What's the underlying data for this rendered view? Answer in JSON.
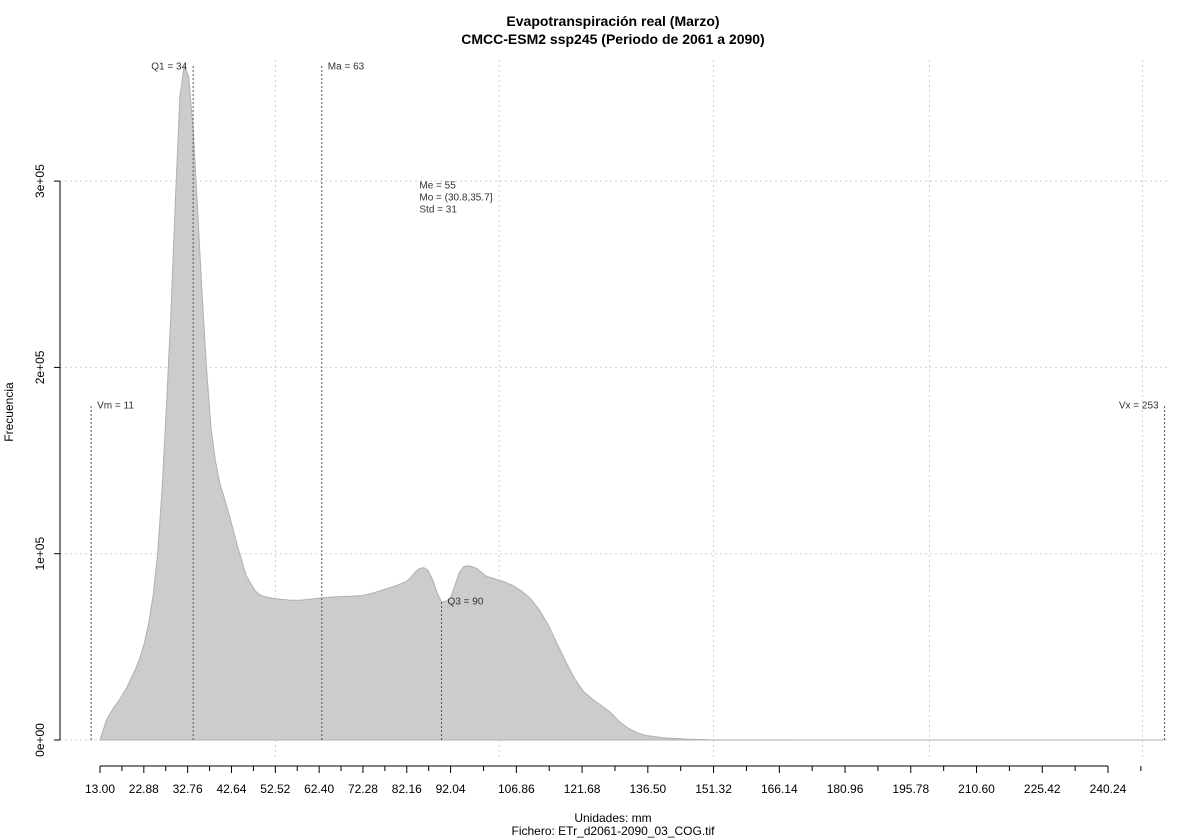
{
  "chart_data": {
    "type": "area",
    "title": "Evapotranspiración real (Marzo)",
    "subtitle": "CMCC-ESM2 ssp245 (Periodo de 2061 a 2090)",
    "xlabel": "Unidades: mm",
    "ylabel": "Frecuencia",
    "footer": "Fichero: ETr_d2061-2090_03_COG.tif",
    "xlim": [
      10.5,
      255
    ],
    "ylim": [
      0,
      365000
    ],
    "grid": true,
    "x_ticks": [
      {
        "value": 13.0,
        "label": "13.00"
      },
      {
        "value": 22.88,
        "label": "22.88"
      },
      {
        "value": 32.76,
        "label": "32.76"
      },
      {
        "value": 42.64,
        "label": "42.64"
      },
      {
        "value": 52.52,
        "label": "52.52"
      },
      {
        "value": 62.4,
        "label": "62.40"
      },
      {
        "value": 72.28,
        "label": "72.28"
      },
      {
        "value": 82.16,
        "label": "82.16"
      },
      {
        "value": 92.04,
        "label": "92.04"
      },
      {
        "value": 106.86,
        "label": "106.86"
      },
      {
        "value": 121.68,
        "label": "121.68"
      },
      {
        "value": 136.5,
        "label": "136.50"
      },
      {
        "value": 151.32,
        "label": "151.32"
      },
      {
        "value": 166.14,
        "label": "166.14"
      },
      {
        "value": 180.96,
        "label": "180.96"
      },
      {
        "value": 195.78,
        "label": "195.78"
      },
      {
        "value": 210.6,
        "label": "210.60"
      },
      {
        "value": 225.42,
        "label": "225.42"
      },
      {
        "value": 240.24,
        "label": "240.24"
      }
    ],
    "x_minor_ticks": [
      17.94,
      27.82,
      37.7,
      47.58,
      57.46,
      67.34,
      77.22,
      87.1,
      99.45,
      114.27,
      129.09,
      143.91,
      158.73,
      173.55,
      188.37,
      203.19,
      218.01,
      232.83,
      247.65
    ],
    "y_ticks": [
      {
        "value": 0,
        "label": "0e+00"
      },
      {
        "value": 100000,
        "label": "1e+05"
      },
      {
        "value": 200000,
        "label": "2e+05"
      },
      {
        "value": 300000,
        "label": "3e+05"
      }
    ],
    "x_grid": [
      52.52,
      103.0,
      151.32,
      200.0,
      248.0
    ],
    "series": [
      {
        "x": [
          13,
          14.5,
          16,
          17.5,
          19,
          20,
          21,
          22,
          23,
          24,
          25,
          26,
          27,
          28,
          29,
          30,
          31,
          32,
          33,
          34,
          35,
          36,
          37,
          38,
          39,
          40,
          41,
          42,
          43,
          44,
          45,
          46,
          47,
          48,
          49,
          50,
          51,
          52,
          54,
          56,
          58,
          60,
          62,
          64,
          66,
          68,
          70,
          72,
          74,
          76,
          78,
          80,
          82,
          83,
          84,
          85,
          86,
          87,
          88,
          89,
          90,
          91,
          92,
          93,
          94,
          95,
          96,
          97,
          98,
          99,
          100,
          102,
          104,
          106,
          108,
          110,
          112,
          114,
          116,
          118,
          120,
          122,
          124,
          126,
          128,
          130,
          132,
          134,
          136,
          140,
          145,
          150,
          155,
          160,
          170,
          180,
          200,
          220,
          240,
          253
        ],
        "y": [
          0,
          11000,
          17000,
          22000,
          28000,
          33000,
          38000,
          44000,
          52000,
          63000,
          78000,
          100000,
          135000,
          180000,
          230000,
          290000,
          345000,
          362000,
          356000,
          328000,
          285000,
          240000,
          200000,
          168000,
          150000,
          138000,
          130000,
          122000,
          113000,
          104000,
          96000,
          88000,
          84000,
          80000,
          78000,
          77000,
          76500,
          76000,
          75500,
          75000,
          75000,
          75500,
          76000,
          76500,
          76800,
          77000,
          77200,
          77500,
          78500,
          80000,
          81500,
          83000,
          85000,
          87000,
          90000,
          92000,
          92500,
          91000,
          86000,
          79000,
          74000,
          74500,
          76000,
          83000,
          90000,
          93000,
          93500,
          93000,
          92000,
          90000,
          88000,
          86500,
          85000,
          83000,
          80000,
          76000,
          70000,
          62000,
          52000,
          42000,
          33000,
          26000,
          22000,
          18500,
          15000,
          10000,
          6500,
          4000,
          2500,
          1200,
          500,
          150,
          80,
          40,
          20,
          8,
          4,
          2,
          1,
          0
        ]
      }
    ],
    "annotations": [
      {
        "label": "Vm = 11",
        "x": 11,
        "top": 180000,
        "align": "right"
      },
      {
        "label": "Q1 = 34",
        "x": 34,
        "top": 362000,
        "align": "left"
      },
      {
        "label": "Ma = 63",
        "x": 63,
        "top": 362000,
        "align": "right"
      },
      {
        "label": "Q3 = 90",
        "x": 90,
        "top": 75000,
        "align": "right"
      },
      {
        "label": "Vx = 253",
        "x": 253,
        "top": 180000,
        "align": "left"
      }
    ],
    "stats": {
      "x": 85,
      "y": 296000,
      "lines": [
        "Me = 55",
        "Mo = (30.8,35.7]",
        "Std = 31"
      ]
    }
  }
}
